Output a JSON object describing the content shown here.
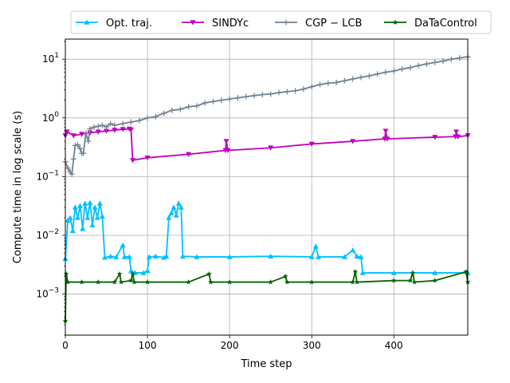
{
  "chart_data": {
    "type": "line",
    "xlabel": "Time step",
    "ylabel": "Compute time in log scale (s)",
    "xlim": [
      0,
      490
    ],
    "ylim": [
      0.0002,
      22
    ],
    "yscale": "log",
    "grid": true,
    "legend_position": "top",
    "x_ticks": [
      0,
      100,
      200,
      300,
      400
    ],
    "y_ticks": [
      0.001,
      0.01,
      0.1,
      1,
      10
    ],
    "y_tick_labels": [
      {
        "base": "10",
        "exp": "−3"
      },
      {
        "base": "10",
        "exp": "−2"
      },
      {
        "base": "10",
        "exp": "−1"
      },
      {
        "base": "10",
        "exp": "0"
      },
      {
        "base": "10",
        "exp": "1"
      }
    ],
    "series": [
      {
        "name": "Opt. traj.",
        "color": "#00bfff",
        "marker": "triangle-up",
        "points": [
          [
            0,
            0.004
          ],
          [
            3,
            0.018
          ],
          [
            6,
            0.02
          ],
          [
            9,
            0.012
          ],
          [
            12,
            0.03
          ],
          [
            15,
            0.02
          ],
          [
            18,
            0.032
          ],
          [
            21,
            0.013
          ],
          [
            24,
            0.035
          ],
          [
            27,
            0.02
          ],
          [
            30,
            0.036
          ],
          [
            33,
            0.015
          ],
          [
            36,
            0.03
          ],
          [
            39,
            0.02
          ],
          [
            42,
            0.035
          ],
          [
            45,
            0.021
          ],
          [
            48,
            0.0042
          ],
          [
            55,
            0.0044
          ],
          [
            62,
            0.0043
          ],
          [
            70,
            0.0068
          ],
          [
            72,
            0.0043
          ],
          [
            78,
            0.0043
          ],
          [
            80,
            0.0025
          ],
          [
            85,
            0.0023
          ],
          [
            95,
            0.0023
          ],
          [
            100,
            0.0025
          ],
          [
            102,
            0.0043
          ],
          [
            110,
            0.0044
          ],
          [
            120,
            0.0042
          ],
          [
            123,
            0.0044
          ],
          [
            126,
            0.02
          ],
          [
            129,
            0.024
          ],
          [
            132,
            0.03
          ],
          [
            135,
            0.022
          ],
          [
            138,
            0.035
          ],
          [
            141,
            0.03
          ],
          [
            143,
            0.0044
          ],
          [
            160,
            0.0043
          ],
          [
            200,
            0.0043
          ],
          [
            250,
            0.0044
          ],
          [
            300,
            0.0043
          ],
          [
            305,
            0.0065
          ],
          [
            308,
            0.0043
          ],
          [
            340,
            0.0043
          ],
          [
            350,
            0.0056
          ],
          [
            355,
            0.0044
          ],
          [
            360,
            0.0043
          ],
          [
            362,
            0.0023
          ],
          [
            400,
            0.0023
          ],
          [
            450,
            0.0023
          ],
          [
            490,
            0.0023
          ]
        ]
      },
      {
        "name": "SINDYc",
        "color": "#bf00bf",
        "marker": "triangle-down",
        "points": [
          [
            0,
            0.5
          ],
          [
            2,
            0.58
          ],
          [
            10,
            0.5
          ],
          [
            20,
            0.53
          ],
          [
            30,
            0.56
          ],
          [
            40,
            0.58
          ],
          [
            50,
            0.6
          ],
          [
            60,
            0.62
          ],
          [
            70,
            0.64
          ],
          [
            78,
            0.65
          ],
          [
            80,
            0.63
          ],
          [
            82,
            0.19
          ],
          [
            100,
            0.21
          ],
          [
            150,
            0.24
          ],
          [
            195,
            0.28
          ],
          [
            196,
            0.4
          ],
          [
            198,
            0.28
          ],
          [
            250,
            0.31
          ],
          [
            300,
            0.36
          ],
          [
            350,
            0.4
          ],
          [
            389,
            0.44
          ],
          [
            390,
            0.6
          ],
          [
            392,
            0.44
          ],
          [
            450,
            0.47
          ],
          [
            475,
            0.48
          ],
          [
            476,
            0.58
          ],
          [
            478,
            0.48
          ],
          [
            490,
            0.5
          ]
        ]
      },
      {
        "name": "CGP − LCB",
        "color": "#708090",
        "marker": "plus",
        "points": [
          [
            0,
            0.18
          ],
          [
            3,
            0.14
          ],
          [
            6,
            0.12
          ],
          [
            8,
            0.11
          ],
          [
            10,
            0.2
          ],
          [
            12,
            0.34
          ],
          [
            15,
            0.35
          ],
          [
            18,
            0.3
          ],
          [
            20,
            0.25
          ],
          [
            22,
            0.25
          ],
          [
            25,
            0.55
          ],
          [
            28,
            0.4
          ],
          [
            30,
            0.65
          ],
          [
            35,
            0.7
          ],
          [
            40,
            0.72
          ],
          [
            45,
            0.75
          ],
          [
            50,
            0.7
          ],
          [
            55,
            0.8
          ],
          [
            60,
            0.75
          ],
          [
            70,
            0.8
          ],
          [
            80,
            0.85
          ],
          [
            90,
            0.9
          ],
          [
            100,
            1.0
          ],
          [
            110,
            1.05
          ],
          [
            120,
            1.2
          ],
          [
            130,
            1.35
          ],
          [
            140,
            1.4
          ],
          [
            150,
            1.55
          ],
          [
            160,
            1.6
          ],
          [
            170,
            1.8
          ],
          [
            180,
            1.9
          ],
          [
            190,
            2.0
          ],
          [
            200,
            2.1
          ],
          [
            210,
            2.2
          ],
          [
            220,
            2.3
          ],
          [
            230,
            2.4
          ],
          [
            240,
            2.5
          ],
          [
            250,
            2.55
          ],
          [
            260,
            2.7
          ],
          [
            270,
            2.8
          ],
          [
            280,
            2.9
          ],
          [
            290,
            3.1
          ],
          [
            300,
            3.4
          ],
          [
            310,
            3.7
          ],
          [
            320,
            3.9
          ],
          [
            330,
            4.0
          ],
          [
            340,
            4.3
          ],
          [
            350,
            4.6
          ],
          [
            360,
            4.9
          ],
          [
            370,
            5.2
          ],
          [
            380,
            5.6
          ],
          [
            390,
            6.0
          ],
          [
            400,
            6.3
          ],
          [
            410,
            6.8
          ],
          [
            420,
            7.2
          ],
          [
            430,
            7.8
          ],
          [
            440,
            8.3
          ],
          [
            450,
            8.8
          ],
          [
            460,
            9.3
          ],
          [
            470,
            10.0
          ],
          [
            480,
            10.5
          ],
          [
            490,
            11.0
          ]
        ]
      },
      {
        "name": "DaTaControl",
        "color": "#006400",
        "marker": "star",
        "points": [
          [
            0,
            0.00035
          ],
          [
            1,
            0.0022
          ],
          [
            3,
            0.0016
          ],
          [
            20,
            0.0016
          ],
          [
            40,
            0.0016
          ],
          [
            60,
            0.0016
          ],
          [
            66,
            0.0022
          ],
          [
            68,
            0.0016
          ],
          [
            80,
            0.0017
          ],
          [
            82,
            0.0022
          ],
          [
            84,
            0.0016
          ],
          [
            100,
            0.0016
          ],
          [
            150,
            0.0016
          ],
          [
            175,
            0.0022
          ],
          [
            177,
            0.0016
          ],
          [
            200,
            0.0016
          ],
          [
            250,
            0.0016
          ],
          [
            268,
            0.002
          ],
          [
            270,
            0.0016
          ],
          [
            300,
            0.0016
          ],
          [
            350,
            0.0016
          ],
          [
            353,
            0.0024
          ],
          [
            355,
            0.0016
          ],
          [
            400,
            0.0017
          ],
          [
            420,
            0.0017
          ],
          [
            423,
            0.0023
          ],
          [
            425,
            0.0016
          ],
          [
            450,
            0.0017
          ],
          [
            488,
            0.0024
          ],
          [
            490,
            0.0016
          ]
        ]
      }
    ]
  }
}
